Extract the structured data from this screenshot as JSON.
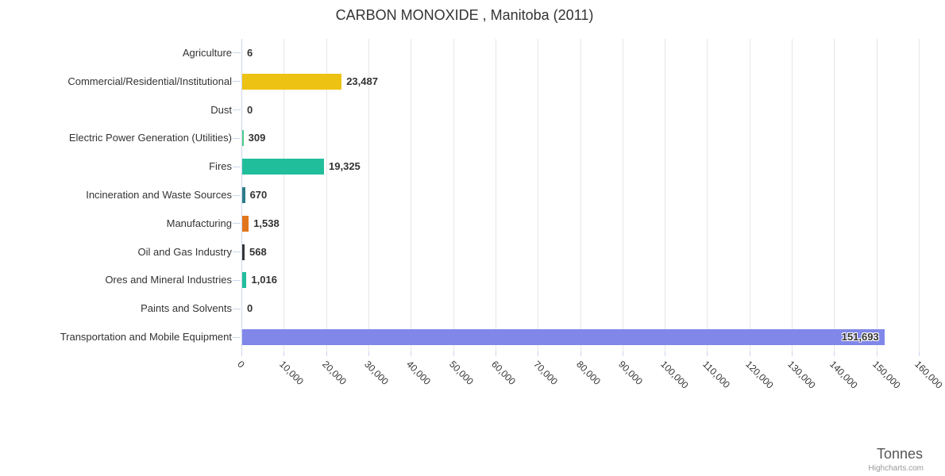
{
  "header": {
    "title": "CARBON MONOXIDE , Manitoba (2011)"
  },
  "chart_data": {
    "type": "bar",
    "orientation": "horizontal",
    "title": "CARBON MONOXIDE , Manitoba (2011)",
    "categories": [
      "Agriculture",
      "Commercial/Residential/Institutional",
      "Dust",
      "Electric Power Generation (Utilities)",
      "Fires",
      "Incineration and Waste Sources",
      "Manufacturing",
      "Oil and Gas Industry",
      "Ores and Mineral Industries",
      "Paints and Solvents",
      "Transportation and Mobile Equipment"
    ],
    "values": [
      6,
      23487,
      0,
      309,
      19325,
      670,
      1538,
      568,
      1016,
      0,
      151693
    ],
    "value_labels": [
      "6",
      "23,487",
      "0",
      "309",
      "19,325",
      "670",
      "1,538",
      "568",
      "1,016",
      "0",
      "151,693"
    ],
    "bar_colors": [
      null,
      "#edc213",
      null,
      "#4ecb8d",
      "#21be9c",
      "#2c7c8a",
      "#e2761b",
      "#35363a",
      "#21be9c",
      null,
      "#8087e8"
    ],
    "xlabel": "Tonnes",
    "axis": {
      "min": 0,
      "max": 160000,
      "tick_interval": 10000,
      "tick_labels": [
        "0",
        "10,000",
        "20,000",
        "30,000",
        "40,000",
        "50,000",
        "60,000",
        "70,000",
        "80,000",
        "90,000",
        "100,000",
        "110,000",
        "120,000",
        "130,000",
        "140,000",
        "150,000",
        "160,000"
      ]
    },
    "grid": true,
    "legend": false
  },
  "credits": {
    "label": "Highcharts.com"
  },
  "colors": {
    "grid": "#e6e6e6",
    "axis_line": "#ccd6eb",
    "text": "#333333",
    "axis_title": "#555555",
    "credits": "#999999"
  }
}
